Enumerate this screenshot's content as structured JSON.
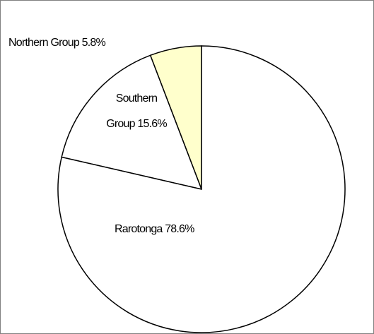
{
  "chart_data": {
    "type": "pie",
    "categories": [
      "Rarotonga",
      "Southern Group",
      "Northern Group"
    ],
    "values": [
      78.6,
      15.6,
      5.8
    ],
    "value_labels": [
      "78.6%",
      "15.6%",
      "5.8%"
    ],
    "colors": [
      "#ffffff",
      "#ffffff",
      "#ffffcc"
    ]
  }
}
